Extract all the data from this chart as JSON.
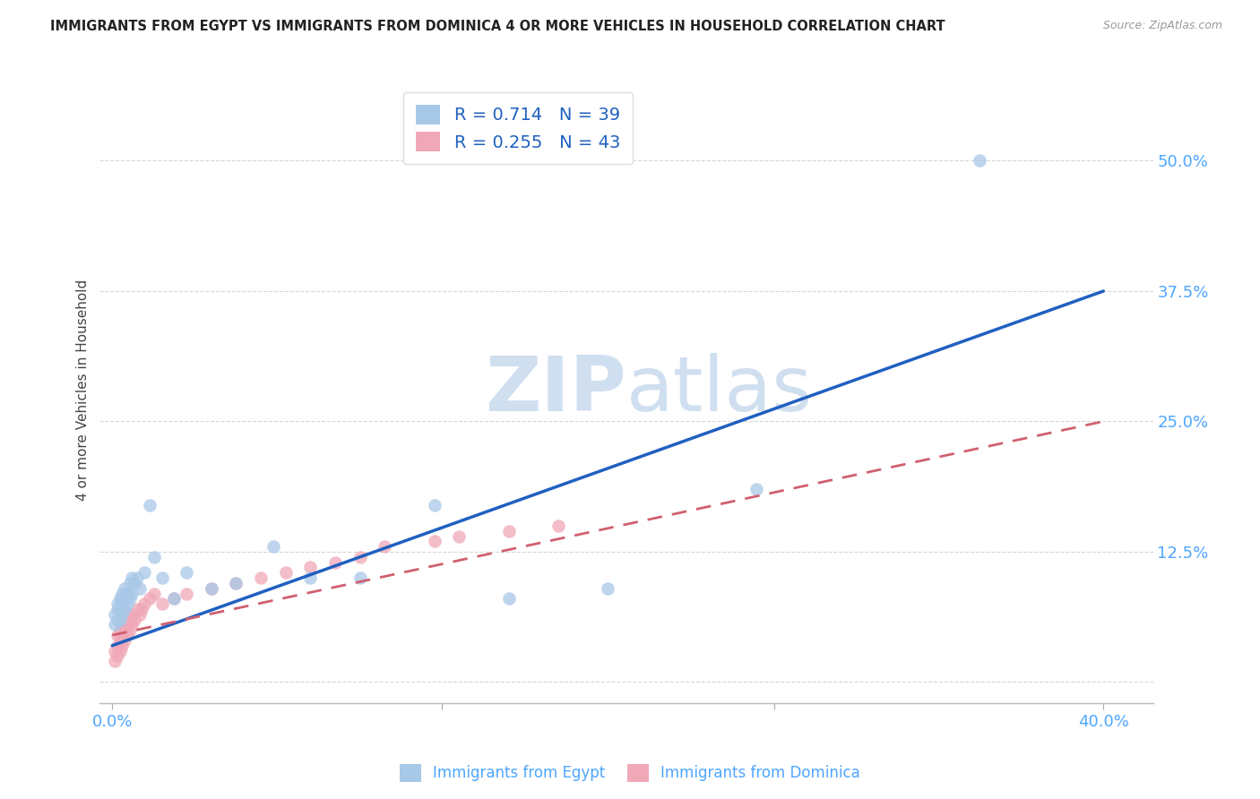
{
  "title": "IMMIGRANTS FROM EGYPT VS IMMIGRANTS FROM DOMINICA 4 OR MORE VEHICLES IN HOUSEHOLD CORRELATION CHART",
  "source": "Source: ZipAtlas.com",
  "tick_color": "#4da6ff",
  "ylabel": "4 or more Vehicles in Household",
  "xlim": [
    -0.005,
    0.42
  ],
  "ylim": [
    -0.02,
    0.58
  ],
  "xtick_positions": [
    0.0,
    0.133,
    0.267,
    0.4
  ],
  "xtick_labels": [
    "0.0%",
    "",
    "",
    "40.0%"
  ],
  "ytick_positions": [
    0.0,
    0.125,
    0.25,
    0.375,
    0.5
  ],
  "ytick_labels": [
    "",
    "12.5%",
    "25.0%",
    "37.5%",
    "50.0%"
  ],
  "legend_blue_label": "Immigrants from Egypt",
  "legend_pink_label": "Immigrants from Dominica",
  "R_blue": "0.714",
  "N_blue": "39",
  "R_pink": "0.255",
  "N_pink": "43",
  "blue_color": "#a8c8e8",
  "pink_color": "#f0a8b8",
  "trendline_blue_color": "#2060c0",
  "trendline_pink_color": "#d06070",
  "watermark_zip": "ZIP",
  "watermark_atlas": "atlas",
  "watermark_color": "#d0dff0",
  "egypt_x": [
    0.001,
    0.001,
    0.002,
    0.002,
    0.002,
    0.003,
    0.003,
    0.003,
    0.004,
    0.004,
    0.004,
    0.005,
    0.005,
    0.005,
    0.006,
    0.006,
    0.007,
    0.007,
    0.008,
    0.008,
    0.009,
    0.01,
    0.011,
    0.013,
    0.015,
    0.017,
    0.02,
    0.025,
    0.03,
    0.04,
    0.05,
    0.065,
    0.08,
    0.1,
    0.13,
    0.16,
    0.2,
    0.26,
    0.35
  ],
  "egypt_y": [
    0.055,
    0.065,
    0.06,
    0.07,
    0.075,
    0.06,
    0.07,
    0.08,
    0.065,
    0.075,
    0.085,
    0.07,
    0.08,
    0.09,
    0.075,
    0.085,
    0.08,
    0.095,
    0.085,
    0.1,
    0.095,
    0.1,
    0.09,
    0.105,
    0.17,
    0.12,
    0.1,
    0.08,
    0.105,
    0.09,
    0.095,
    0.13,
    0.1,
    0.1,
    0.17,
    0.08,
    0.09,
    0.185,
    0.5
  ],
  "dominica_x": [
    0.001,
    0.001,
    0.002,
    0.002,
    0.002,
    0.003,
    0.003,
    0.003,
    0.004,
    0.004,
    0.004,
    0.005,
    0.005,
    0.005,
    0.006,
    0.006,
    0.006,
    0.007,
    0.007,
    0.008,
    0.008,
    0.009,
    0.01,
    0.011,
    0.012,
    0.013,
    0.015,
    0.017,
    0.02,
    0.025,
    0.03,
    0.04,
    0.05,
    0.06,
    0.07,
    0.08,
    0.09,
    0.1,
    0.11,
    0.13,
    0.14,
    0.16,
    0.18
  ],
  "dominica_y": [
    0.02,
    0.03,
    0.025,
    0.035,
    0.045,
    0.03,
    0.04,
    0.05,
    0.035,
    0.045,
    0.055,
    0.04,
    0.05,
    0.06,
    0.045,
    0.055,
    0.065,
    0.05,
    0.06,
    0.055,
    0.065,
    0.06,
    0.07,
    0.065,
    0.07,
    0.075,
    0.08,
    0.085,
    0.075,
    0.08,
    0.085,
    0.09,
    0.095,
    0.1,
    0.105,
    0.11,
    0.115,
    0.12,
    0.13,
    0.135,
    0.14,
    0.145,
    0.15
  ],
  "egypt_trend_x": [
    0.0,
    0.4
  ],
  "egypt_trend_y": [
    0.035,
    0.375
  ],
  "dominica_trend_x": [
    0.0,
    0.4
  ],
  "dominica_trend_y": [
    0.045,
    0.25
  ]
}
